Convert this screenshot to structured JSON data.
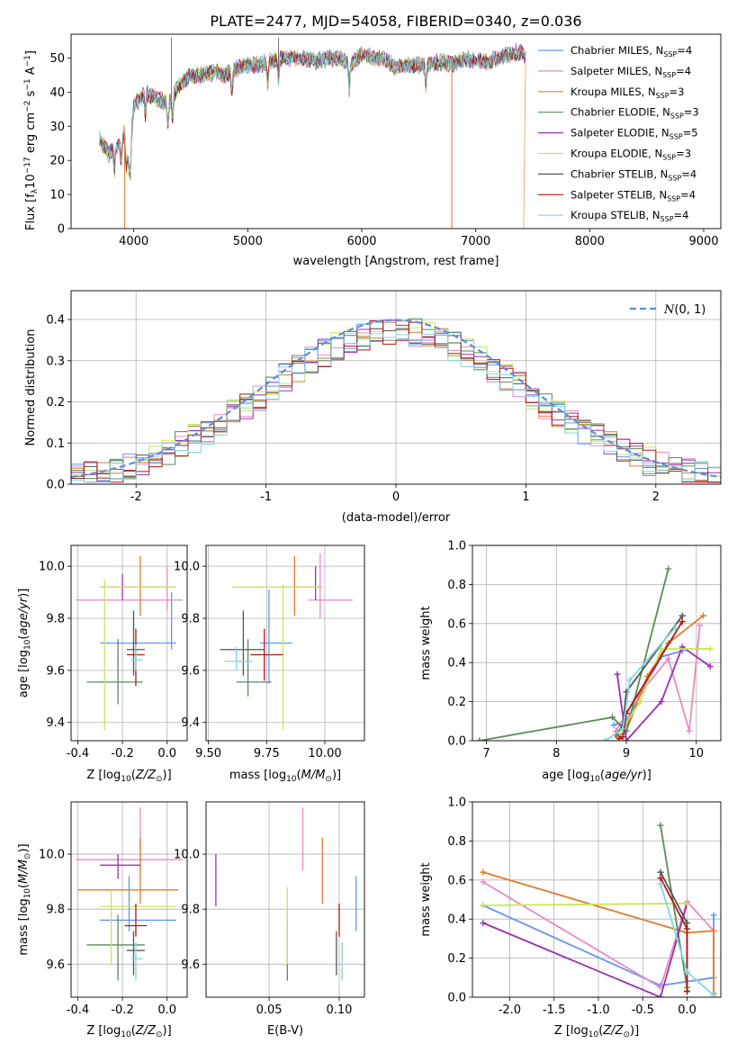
{
  "title": "PLATE=2477, MJD=54058, FIBERID=0340, z=0.036",
  "colors": {
    "Chabrier MILES": "#6495ed",
    "Salpeter MILES": "#e78ac3",
    "Kroupa MILES": "#e07b2a",
    "Chabrier ELODIE": "#5a8a5a",
    "Salpeter ELODIE": "#9b30b0",
    "Kroupa ELODIE": "#c8e65a",
    "Chabrier STELIB": "#555555",
    "Salpeter STELIB": "#b01818",
    "Kroupa STELIB": "#7fd8e0"
  },
  "chart_data": [
    {
      "id": "spectrum",
      "type": "line",
      "xlabel": "wavelength [Angstrom, rest frame]",
      "ylabel": "Flux [f_λ10^-17 erg cm^-2 s^-1 A^-1]",
      "xlim": [
        3450,
        9150
      ],
      "ylim": [
        0,
        57
      ],
      "xticks": [
        4000,
        5000,
        6000,
        7000,
        8000,
        9000
      ],
      "yticks": [
        0,
        10,
        20,
        30,
        40,
        50
      ],
      "grid": false,
      "legend_position": "right",
      "series": [
        {
          "name": "Chabrier MILES, N_SSP=4",
          "label_main": "Chabrier MILES, N",
          "sub": "SSP",
          "tail": "=4"
        },
        {
          "name": "Salpeter MILES, N_SSP=4",
          "label_main": "Salpeter MILES, N",
          "sub": "SSP",
          "tail": "=4"
        },
        {
          "name": "Kroupa MILES, N_SSP=3",
          "label_main": "Kroupa MILES, N",
          "sub": "SSP",
          "tail": "=3"
        },
        {
          "name": "Chabrier ELODIE, N_SSP=3",
          "label_main": "Chabrier ELODIE, N",
          "sub": "SSP",
          "tail": "=3"
        },
        {
          "name": "Salpeter ELODIE, N_SSP=5",
          "label_main": "Salpeter ELODIE, N",
          "sub": "SSP",
          "tail": "=5"
        },
        {
          "name": "Kroupa ELODIE, N_SSP=3",
          "label_main": "Kroupa ELODIE, N",
          "sub": "SSP",
          "tail": "=3"
        },
        {
          "name": "Chabrier STELIB, N_SSP=4",
          "label_main": "Chabrier STELIB, N",
          "sub": "SSP",
          "tail": "=4"
        },
        {
          "name": "Salpeter STELIB, N_SSP=4",
          "label_main": "Salpeter STELIB, N",
          "sub": "SSP",
          "tail": "=4"
        },
        {
          "name": "Kroupa STELIB, N_SSP=4",
          "label_main": "Kroupa STELIB, N",
          "sub": "SSP",
          "tail": "=4"
        }
      ],
      "spectrum_shape": {
        "x": [
          3700,
          3780,
          3850,
          3920,
          3960,
          4000,
          4100,
          4200,
          4300,
          4400,
          4500,
          4600,
          4700,
          4800,
          4900,
          5000,
          5100,
          5200,
          5300,
          5400,
          5500,
          5600,
          5700,
          5800,
          5900,
          6000,
          6100,
          6200,
          6300,
          6400,
          6500,
          6600,
          6700,
          6800,
          6900,
          7000,
          7100,
          7200,
          7300,
          7400,
          7440
        ],
        "y": [
          26,
          22,
          24,
          28,
          18,
          36,
          40,
          38,
          37,
          42,
          45,
          45,
          46,
          45,
          47,
          48,
          48,
          49,
          50,
          50,
          50,
          49,
          50,
          50,
          48,
          51,
          50,
          50,
          47,
          48,
          48,
          48,
          49,
          48,
          50,
          49,
          49,
          50,
          51,
          52,
          50
        ]
      },
      "cutoffs": [
        {
          "series": 2,
          "x": 3920
        },
        {
          "series": 2,
          "x": 6790
        },
        {
          "series": 2,
          "x": 7420
        }
      ]
    },
    {
      "id": "residuals",
      "type": "histogram",
      "xlabel": "(data-model)/error",
      "ylabel": "Normed distribution",
      "xlim": [
        -2.5,
        2.5
      ],
      "ylim": [
        0,
        0.47
      ],
      "xticks": [
        -2,
        -1,
        0,
        1,
        2
      ],
      "yticks": [
        0.0,
        0.1,
        0.2,
        0.3,
        0.4
      ],
      "grid": true,
      "legend": "N(0,1)",
      "legend_position": "top-right",
      "reference_curve": "normal pdf, mean 0, sigma 1"
    },
    {
      "id": "age-vs-Z",
      "type": "errorbar",
      "xlabel": "Z [log10(Z/Z_sun)]",
      "ylabel": "age  [log10(age/yr)]",
      "xlim": [
        -0.43,
        0.09
      ],
      "ylim": [
        9.33,
        10.08
      ],
      "xticks": [
        -0.4,
        -0.2,
        0.0
      ],
      "yticks": [
        9.4,
        9.6,
        9.8,
        10.0
      ],
      "grid": true,
      "points": [
        {
          "x": 0.02,
          "xlo": -0.3,
          "xhi": 0.04,
          "y": 9.705,
          "ylo": 9.68,
          "yhi": 9.9
        },
        {
          "x": 0.0,
          "xlo": -0.41,
          "xhi": 0.07,
          "y": 9.87,
          "ylo": 9.83,
          "yhi": 10.0
        },
        {
          "x": -0.12,
          "xlo": -0.3,
          "xhi": 0.04,
          "y": 9.92,
          "ylo": 9.81,
          "yhi": 10.04
        },
        {
          "x": -0.22,
          "xlo": -0.36,
          "xhi": -0.11,
          "y": 9.555,
          "ylo": 9.47,
          "yhi": 9.72
        },
        {
          "x": -0.2,
          "xlo": -0.3,
          "xhi": -0.1,
          "y": 9.92,
          "ylo": 9.87,
          "yhi": 9.97
        },
        {
          "x": -0.28,
          "xlo": -0.3,
          "xhi": 0.04,
          "y": 9.92,
          "ylo": 9.37,
          "yhi": 9.95
        },
        {
          "x": -0.15,
          "xlo": -0.18,
          "xhi": -0.1,
          "y": 9.68,
          "ylo": 9.58,
          "yhi": 9.83
        },
        {
          "x": -0.14,
          "xlo": -0.18,
          "xhi": -0.1,
          "y": 9.66,
          "ylo": 9.54,
          "yhi": 9.76
        },
        {
          "x": -0.14,
          "xlo": -0.16,
          "xhi": -0.11,
          "y": 9.64,
          "ylo": 9.6,
          "yhi": 9.7
        }
      ]
    },
    {
      "id": "age-vs-mass",
      "type": "errorbar",
      "xlabel": "mass [log10(M/M_sun)]",
      "ylabel": "",
      "xlim": [
        9.49,
        10.17
      ],
      "ylim": [
        9.33,
        10.08
      ],
      "xticks": [
        9.5,
        9.75,
        10.0
      ],
      "yticks": [
        9.4,
        9.6,
        9.8,
        10.0
      ],
      "grid": true,
      "points": [
        {
          "x": 9.76,
          "xlo": 9.72,
          "xhi": 9.86,
          "y": 9.705,
          "ylo": 9.55,
          "yhi": 9.91
        },
        {
          "x": 9.98,
          "xlo": 9.93,
          "xhi": 10.12,
          "y": 9.87,
          "ylo": 9.8,
          "yhi": 10.05
        },
        {
          "x": 9.87,
          "xlo": 9.81,
          "xhi": 9.98,
          "y": 9.92,
          "ylo": 9.81,
          "yhi": 10.04
        },
        {
          "x": 9.67,
          "xlo": 9.62,
          "xhi": 9.77,
          "y": 9.555,
          "ylo": 9.5,
          "yhi": 9.72
        },
        {
          "x": 9.96,
          "xlo": 9.86,
          "xhi": 9.99,
          "y": 9.92,
          "ylo": 9.87,
          "yhi": 10.0
        },
        {
          "x": 9.82,
          "xlo": 9.6,
          "xhi": 9.99,
          "y": 9.92,
          "ylo": 9.37,
          "yhi": 9.93
        },
        {
          "x": 9.65,
          "xlo": 9.55,
          "xhi": 9.74,
          "y": 9.68,
          "ylo": 9.58,
          "yhi": 9.83
        },
        {
          "x": 9.74,
          "xlo": 9.68,
          "xhi": 9.82,
          "y": 9.66,
          "ylo": 9.56,
          "yhi": 9.76
        },
        {
          "x": 9.62,
          "xlo": 9.57,
          "xhi": 9.69,
          "y": 9.635,
          "ylo": 9.6,
          "yhi": 9.69
        }
      ]
    },
    {
      "id": "massweight-vs-age",
      "type": "line",
      "xlabel": "age  [log10(age/yr)]",
      "ylabel": "mass weight",
      "xlim": [
        6.8,
        10.35
      ],
      "ylim": [
        0,
        1.0
      ],
      "xticks": [
        7,
        8,
        9,
        10
      ],
      "yticks": [
        0.0,
        0.2,
        0.4,
        0.6,
        0.8,
        1.0
      ],
      "grid": true,
      "series": [
        {
          "x": [
            8.82,
            9.0,
            9.3,
            9.5,
            9.8
          ],
          "y": [
            0.08,
            0.1,
            0.3,
            0.43,
            0.46
          ]
        },
        {
          "x": [
            8.85,
            9.1,
            9.6,
            9.9,
            10.05
          ],
          "y": [
            0.05,
            0.2,
            0.42,
            0.05,
            0.59
          ]
        },
        {
          "x": [
            8.88,
            9.0,
            9.3,
            9.6,
            10.1
          ],
          "y": [
            0.02,
            0.05,
            0.33,
            0.5,
            0.64
          ]
        },
        {
          "x": [
            6.9,
            8.8,
            9.0,
            9.6
          ],
          "y": [
            0.0,
            0.12,
            0.05,
            0.88
          ]
        },
        {
          "x": [
            8.87,
            9.0,
            9.5,
            9.8,
            10.2
          ],
          "y": [
            0.34,
            0.0,
            0.2,
            0.48,
            0.38
          ]
        },
        {
          "x": [
            8.9,
            9.2,
            9.5,
            10.2
          ],
          "y": [
            0.04,
            0.2,
            0.47,
            0.47
          ]
        },
        {
          "x": [
            8.85,
            8.95,
            9.0,
            9.8
          ],
          "y": [
            0.03,
            0.08,
            0.25,
            0.64
          ]
        },
        {
          "x": [
            8.9,
            8.95,
            9.0,
            9.8
          ],
          "y": [
            0.01,
            0.02,
            0.14,
            0.61
          ]
        },
        {
          "x": [
            8.7,
            8.95,
            9.05,
            9.7
          ],
          "y": [
            0.0,
            0.06,
            0.31,
            0.58
          ]
        }
      ]
    },
    {
      "id": "mass-vs-Z",
      "type": "errorbar",
      "xlabel": "Z [log10(Z/Z_sun)]",
      "ylabel": "mass [log10(M/M_sun)]",
      "xlim": [
        -0.43,
        0.09
      ],
      "ylim": [
        9.48,
        10.19
      ],
      "xticks": [
        -0.4,
        -0.2,
        0.0
      ],
      "yticks": [
        9.6,
        9.8,
        10.0
      ],
      "grid": true,
      "points": [
        {
          "x": -0.17,
          "xlo": -0.3,
          "xhi": 0.04,
          "y": 9.76,
          "ylo": 9.72,
          "yhi": 9.92
        },
        {
          "x": -0.12,
          "xlo": -0.41,
          "xhi": 0.07,
          "y": 9.98,
          "ylo": 9.94,
          "yhi": 10.17
        },
        {
          "x": -0.12,
          "xlo": -0.4,
          "xhi": 0.05,
          "y": 9.87,
          "ylo": 9.82,
          "yhi": 10.06
        },
        {
          "x": -0.22,
          "xlo": -0.36,
          "xhi": -0.1,
          "y": 9.67,
          "ylo": 9.54,
          "yhi": 9.78
        },
        {
          "x": -0.22,
          "xlo": -0.3,
          "xhi": -0.12,
          "y": 9.96,
          "ylo": 9.91,
          "yhi": 10.0
        },
        {
          "x": -0.25,
          "xlo": -0.3,
          "xhi": 0.04,
          "y": 9.81,
          "ylo": 9.6,
          "yhi": 9.87
        },
        {
          "x": -0.15,
          "xlo": -0.18,
          "xhi": -0.1,
          "y": 9.65,
          "ylo": 9.56,
          "yhi": 9.72
        },
        {
          "x": -0.14,
          "xlo": -0.19,
          "xhi": -0.09,
          "y": 9.74,
          "ylo": 9.7,
          "yhi": 9.82
        },
        {
          "x": -0.14,
          "xlo": -0.16,
          "xhi": -0.11,
          "y": 9.62,
          "ylo": 9.54,
          "yhi": 9.68
        }
      ]
    },
    {
      "id": "mass-vs-EBV",
      "type": "errorbar",
      "xlabel": "E(B-V)",
      "ylabel": "",
      "xlim": [
        0.005,
        0.118
      ],
      "ylim": [
        9.48,
        10.19
      ],
      "xticks": [
        0.05,
        0.1
      ],
      "xticklabels": [
        "0.05",
        "0.10"
      ],
      "yticks": [
        9.6,
        9.8,
        10.0
      ],
      "grid": true,
      "points": [
        {
          "x": 0.112,
          "ylo": 9.72,
          "yhi": 9.92
        },
        {
          "x": 0.074,
          "ylo": 9.94,
          "yhi": 10.17
        },
        {
          "x": 0.088,
          "ylo": 9.82,
          "yhi": 10.06
        },
        {
          "x": 0.063,
          "ylo": 9.54,
          "yhi": 9.78
        },
        {
          "x": 0.012,
          "ylo": 9.81,
          "yhi": 10.0
        },
        {
          "x": 0.063,
          "ylo": 9.6,
          "yhi": 9.88
        },
        {
          "x": 0.098,
          "ylo": 9.56,
          "yhi": 9.72
        },
        {
          "x": 0.1,
          "ylo": 9.7,
          "yhi": 9.82
        },
        {
          "x": 0.102,
          "ylo": 9.54,
          "yhi": 9.68
        }
      ]
    },
    {
      "id": "massweight-vs-Z",
      "type": "line",
      "xlabel": "Z [log10(Z/Z_sun)]",
      "ylabel": "mass weight",
      "xlim": [
        -2.42,
        0.38
      ],
      "ylim": [
        0,
        1.0
      ],
      "xticks": [
        -2.0,
        -1.5,
        -1.0,
        -0.5,
        0.0
      ],
      "yticks": [
        0.0,
        0.2,
        0.4,
        0.6,
        0.8,
        1.0
      ],
      "grid": true,
      "series": [
        {
          "x": [
            -2.3,
            -0.3,
            0.3,
            0.3
          ],
          "y": [
            0.47,
            0.06,
            0.1,
            0.42
          ]
        },
        {
          "x": [
            -2.3,
            -0.3,
            0.0,
            0.3
          ],
          "y": [
            0.59,
            0.05,
            0.49,
            0.34
          ]
        },
        {
          "x": [
            -2.3,
            0.0,
            0.3,
            0.3
          ],
          "y": [
            0.64,
            0.33,
            0.34,
            0.02
          ]
        },
        {
          "x": [
            -0.3,
            0.0
          ],
          "y": [
            0.88,
            0.05
          ]
        },
        {
          "x": [
            -2.3,
            -0.3,
            0.0
          ],
          "y": [
            0.38,
            0.0,
            0.48
          ]
        },
        {
          "x": [
            -2.3,
            0.0
          ],
          "y": [
            0.47,
            0.48
          ]
        },
        {
          "x": [
            -0.3,
            0.0,
            0.0
          ],
          "y": [
            0.64,
            0.38,
            0.03
          ]
        },
        {
          "x": [
            -0.3,
            0.0,
            0.0
          ],
          "y": [
            0.61,
            0.35,
            0.03
          ]
        },
        {
          "x": [
            -0.3,
            0.0,
            0.3
          ],
          "y": [
            0.58,
            0.13,
            0.01
          ]
        }
      ]
    }
  ]
}
